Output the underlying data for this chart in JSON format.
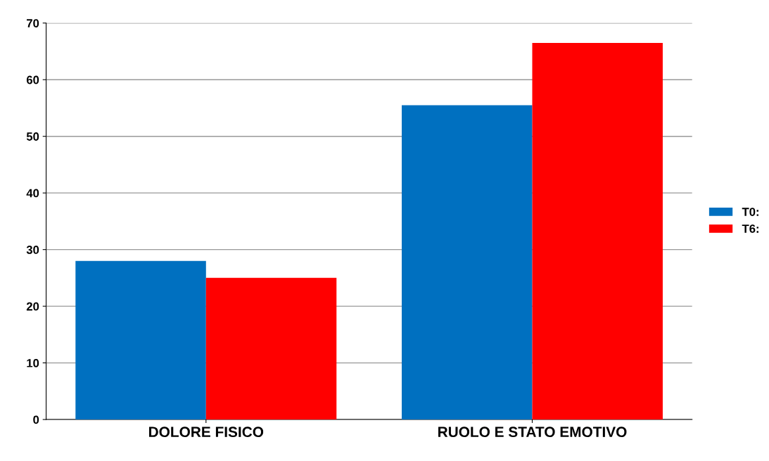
{
  "chart_data": {
    "type": "bar",
    "categories": [
      "DOLORE FISICO",
      "RUOLO E STATO EMOTIVO"
    ],
    "series": [
      {
        "name": "T0:",
        "color": "#0070c0",
        "values": [
          28,
          55.5
        ]
      },
      {
        "name": "T6:",
        "color": "#ff0000",
        "values": [
          25,
          66.5
        ]
      }
    ],
    "ylim": [
      0,
      70
    ],
    "yticks": [
      0,
      10,
      20,
      30,
      40,
      50,
      60,
      70
    ],
    "grid": "y",
    "legend": "right"
  }
}
